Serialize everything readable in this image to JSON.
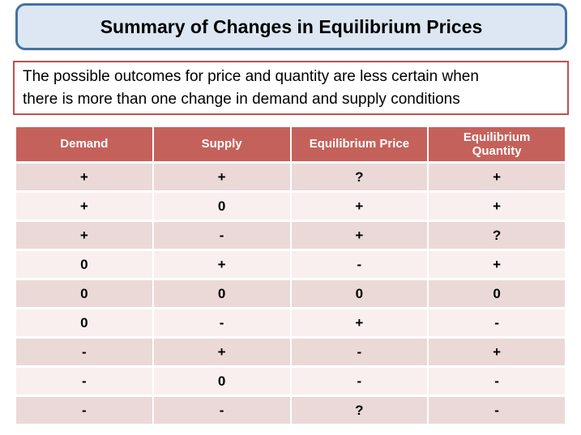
{
  "slide": {
    "title": "Summary of Changes in Equilibrium Prices",
    "note_lines": [
      "The possible outcomes for price and quantity are less certain when",
      "there is more than one change in demand and supply conditions"
    ]
  },
  "colors": {
    "title_fill": "#DDE7F3",
    "title_border": "#4472A4",
    "note_border": "#C0504D",
    "header_fill": "#C5615B",
    "header_text": "#FFFFFF",
    "row_dark": "#EBD9D7",
    "row_light": "#F8EFEE"
  },
  "chart_data": {
    "type": "table",
    "columns": [
      "Demand",
      "Supply",
      "Equilibrium Price",
      "Equilibrium Quantity"
    ],
    "rows": [
      [
        "+",
        "+",
        "?",
        "+"
      ],
      [
        "+",
        "0",
        "+",
        "+"
      ],
      [
        "+",
        "-",
        "+",
        "?"
      ],
      [
        "0",
        "+",
        "-",
        "+"
      ],
      [
        "0",
        "0",
        "0",
        "0"
      ],
      [
        "0",
        "-",
        "+",
        "-"
      ],
      [
        "-",
        "+",
        "-",
        "+"
      ],
      [
        "-",
        "0",
        "-",
        "-"
      ],
      [
        "-",
        "-",
        "?",
        "-"
      ]
    ]
  }
}
